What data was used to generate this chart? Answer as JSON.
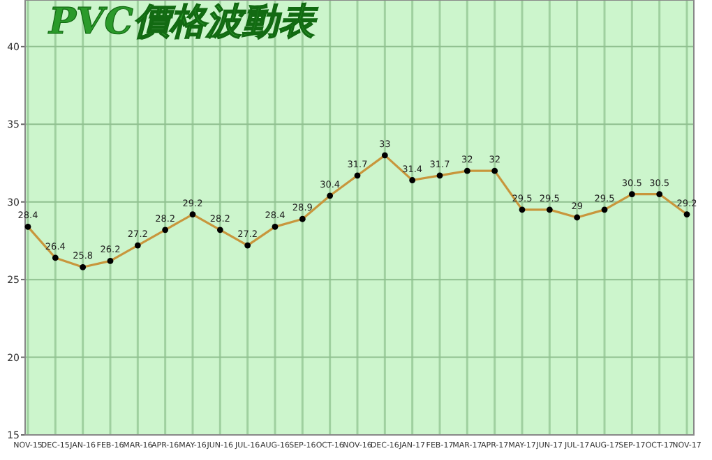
{
  "chart_data": {
    "type": "line",
    "title": "PVC價格波動表",
    "categories": [
      "NOV-15",
      "DEC-15",
      "JAN-16",
      "FEB-16",
      "MAR-16",
      "APR-16",
      "MAY-16",
      "JUN-16",
      "JUL-16",
      "AUG-16",
      "SEP-16",
      "OCT-16",
      "NOV-16",
      "DEC-16",
      "JAN-17",
      "FEB-17",
      "MAR-17",
      "APR-17",
      "MAY-17",
      "JUN-17",
      "JUL-17",
      "AUG-17",
      "SEP-17",
      "OCT-17",
      "NOV-17"
    ],
    "series": [
      {
        "color": "#c8963c",
        "values": [
          28.4,
          26.4,
          25.8,
          26.2,
          27.2,
          28.2,
          29.2,
          28.2,
          27.2,
          28.4,
          28.9,
          30.4,
          31.7,
          33,
          31.4,
          31.7,
          32,
          32,
          29.5,
          29.5,
          29,
          29.5,
          30.5,
          30.5,
          29.2
        ]
      }
    ],
    "ylim": [
      15,
      43
    ],
    "yticks": [
      15,
      20,
      25,
      30,
      35,
      40
    ],
    "grid": true,
    "marker": "circle",
    "data_labels": true
  }
}
